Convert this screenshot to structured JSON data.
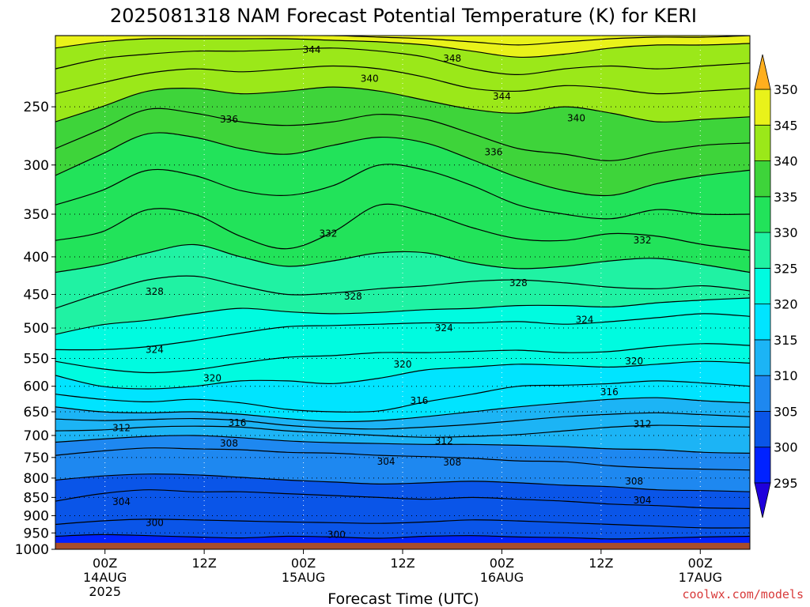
{
  "chart_data": {
    "type": "contour",
    "title": "2025081318 NAM Forecast Potential Temperature (K) for KERI",
    "xlabel": "Forecast Time (UTC)",
    "ylabel": "",
    "x_ticks": [
      {
        "hour": 6,
        "lines": [
          "00Z",
          "14AUG",
          "2025"
        ]
      },
      {
        "hour": 18,
        "lines": [
          "12Z"
        ]
      },
      {
        "hour": 30,
        "lines": [
          "00Z",
          "15AUG"
        ]
      },
      {
        "hour": 42,
        "lines": [
          "12Z"
        ]
      },
      {
        "hour": 54,
        "lines": [
          "00Z",
          "16AUG"
        ]
      },
      {
        "hour": 66,
        "lines": [
          "12Z"
        ]
      },
      {
        "hour": 78,
        "lines": [
          "00Z",
          "17AUG"
        ]
      }
    ],
    "x_range_hours": [
      0,
      84
    ],
    "y_ticks_hpa": [
      250,
      300,
      350,
      400,
      450,
      500,
      550,
      600,
      650,
      700,
      750,
      800,
      850,
      900,
      950,
      1000
    ],
    "y_scale": "log-pressure",
    "y_range_hpa": [
      200,
      1000
    ],
    "surface_pressure_hpa": 980,
    "colorbar": {
      "ticks": [
        295,
        300,
        305,
        310,
        315,
        320,
        325,
        330,
        335,
        340,
        345,
        350
      ],
      "colors": [
        "#1f00dc",
        "#0022ff",
        "#0a55e8",
        "#1e88f0",
        "#1cb4f5",
        "#00e4ff",
        "#00fbe0",
        "#20f2a3",
        "#22e35a",
        "#3ed43a",
        "#9be819",
        "#e9f21a",
        "#ffe400",
        "#ffaf1e"
      ],
      "extend": "both"
    },
    "contour_lines": [
      {
        "value": 300,
        "pressure": [
          960,
          955,
          958,
          962,
          965,
          960,
          962,
          966,
          960,
          958,
          962,
          964,
          968,
          966,
          962,
          960
        ]
      },
      {
        "value": 302,
        "pressure": [
          925,
          915,
          910,
          912,
          915,
          918,
          920,
          922,
          918,
          912,
          915,
          920,
          925,
          930,
          935,
          935
        ]
      },
      {
        "value": 304,
        "pressure": [
          860,
          840,
          830,
          835,
          835,
          840,
          845,
          850,
          855,
          850,
          855,
          860,
          868,
          872,
          878,
          880
        ]
      },
      {
        "value": 306,
        "pressure": [
          805,
          795,
          790,
          792,
          798,
          805,
          810,
          815,
          812,
          808,
          812,
          818,
          822,
          830,
          832,
          835
        ]
      },
      {
        "value": 308,
        "pressure": [
          745,
          735,
          728,
          730,
          732,
          738,
          740,
          745,
          748,
          752,
          758,
          760,
          770,
          775,
          778,
          780
        ]
      },
      {
        "value": 310,
        "pressure": [
          715,
          708,
          702,
          700,
          705,
          712,
          716,
          718,
          720,
          720,
          722,
          725,
          730,
          732,
          738,
          740
        ]
      },
      {
        "value": 312,
        "pressure": [
          690,
          688,
          682,
          680,
          682,
          690,
          695,
          700,
          704,
          702,
          698,
          690,
          682,
          678,
          680,
          682
        ]
      },
      {
        "value": 314,
        "pressure": [
          665,
          668,
          666,
          664,
          668,
          678,
          684,
          686,
          682,
          676,
          668,
          660,
          655,
          652,
          656,
          660
        ]
      },
      {
        "value": 316,
        "pressure": [
          640,
          650,
          652,
          650,
          655,
          664,
          670,
          668,
          660,
          650,
          640,
          632,
          625,
          622,
          628,
          632
        ]
      },
      {
        "value": 318,
        "pressure": [
          615,
          625,
          630,
          625,
          632,
          645,
          650,
          648,
          630,
          615,
          600,
          598,
          595,
          590,
          594,
          600
        ]
      },
      {
        "value": 320,
        "pressure": [
          580,
          600,
          605,
          600,
          590,
          590,
          595,
          585,
          570,
          565,
          560,
          562,
          565,
          560,
          555,
          558
        ]
      },
      {
        "value": 322,
        "pressure": [
          555,
          568,
          575,
          570,
          558,
          548,
          545,
          540,
          540,
          538,
          536,
          540,
          538,
          530,
          525,
          528
        ]
      },
      {
        "value": 324,
        "pressure": [
          535,
          535,
          530,
          520,
          508,
          498,
          496,
          494,
          492,
          492,
          490,
          494,
          490,
          484,
          478,
          482
        ]
      },
      {
        "value": 326,
        "pressure": [
          510,
          495,
          488,
          478,
          470,
          475,
          478,
          476,
          472,
          470,
          466,
          466,
          468,
          462,
          458,
          455
        ]
      },
      {
        "value": 328,
        "pressure": [
          470,
          448,
          430,
          425,
          438,
          450,
          448,
          442,
          438,
          432,
          430,
          434,
          440,
          442,
          438,
          445
        ]
      },
      {
        "value": 330,
        "pressure": [
          420,
          410,
          395,
          385,
          400,
          412,
          405,
          395,
          395,
          408,
          415,
          412,
          405,
          402,
          410,
          420
        ]
      },
      {
        "value": 332,
        "pressure": [
          380,
          370,
          345,
          350,
          375,
          390,
          370,
          340,
          348,
          365,
          378,
          380,
          372,
          375,
          385,
          392
        ]
      },
      {
        "value": 334,
        "pressure": [
          340,
          325,
          305,
          310,
          325,
          330,
          320,
          300,
          305,
          320,
          340,
          350,
          355,
          345,
          350,
          350
        ]
      },
      {
        "value": 336,
        "pressure": [
          310,
          290,
          272,
          275,
          285,
          290,
          282,
          275,
          280,
          295,
          312,
          325,
          330,
          318,
          310,
          305
        ]
      },
      {
        "value": 338,
        "pressure": [
          285,
          268,
          252,
          255,
          262,
          265,
          262,
          256,
          260,
          272,
          285,
          290,
          296,
          288,
          282,
          280
        ]
      },
      {
        "value": 340,
        "pressure": [
          262,
          250,
          238,
          236,
          240,
          238,
          235,
          238,
          245,
          252,
          255,
          250,
          255,
          262,
          260,
          258
        ]
      },
      {
        "value": 342,
        "pressure": [
          240,
          232,
          225,
          222,
          224,
          222,
          220,
          222,
          228,
          236,
          238,
          234,
          236,
          240,
          238,
          236
        ]
      },
      {
        "value": 344,
        "pressure": [
          222,
          215,
          212,
          210,
          210,
          209,
          208,
          210,
          214,
          222,
          226,
          222,
          220,
          222,
          220,
          218
        ]
      },
      {
        "value": 346,
        "pressure": [
          208,
          204,
          202,
          202,
          202,
          202,
          203,
          204,
          206,
          210,
          214,
          212,
          208,
          206,
          206,
          205
        ]
      },
      {
        "value": 348,
        "pressure": [
          200,
          200,
          200,
          200,
          200,
          200,
          200,
          201,
          202,
          204,
          206,
          204,
          202,
          201,
          201,
          200
        ]
      }
    ],
    "contour_labels": [
      {
        "text": "344",
        "hour": 31,
        "pressure": 209
      },
      {
        "text": "348",
        "hour": 48,
        "pressure": 215
      },
      {
        "text": "340",
        "hour": 38,
        "pressure": 229
      },
      {
        "text": "344",
        "hour": 54,
        "pressure": 242
      },
      {
        "text": "340",
        "hour": 63,
        "pressure": 259
      },
      {
        "text": "336",
        "hour": 21,
        "pressure": 260
      },
      {
        "text": "336",
        "hour": 53,
        "pressure": 288
      },
      {
        "text": "332",
        "hour": 33,
        "pressure": 372
      },
      {
        "text": "332",
        "hour": 71,
        "pressure": 380
      },
      {
        "text": "328",
        "hour": 56,
        "pressure": 434
      },
      {
        "text": "328",
        "hour": 12,
        "pressure": 446
      },
      {
        "text": "328",
        "hour": 36,
        "pressure": 453
      },
      {
        "text": "324",
        "hour": 64,
        "pressure": 487
      },
      {
        "text": "324",
        "hour": 47,
        "pressure": 500
      },
      {
        "text": "324",
        "hour": 12,
        "pressure": 535
      },
      {
        "text": "320",
        "hour": 42,
        "pressure": 560
      },
      {
        "text": "320",
        "hour": 70,
        "pressure": 555
      },
      {
        "text": "320",
        "hour": 19,
        "pressure": 585
      },
      {
        "text": "316",
        "hour": 67,
        "pressure": 611
      },
      {
        "text": "316",
        "hour": 44,
        "pressure": 628
      },
      {
        "text": "316",
        "hour": 22,
        "pressure": 673
      },
      {
        "text": "312",
        "hour": 71,
        "pressure": 675
      },
      {
        "text": "312",
        "hour": 8,
        "pressure": 684
      },
      {
        "text": "312",
        "hour": 47,
        "pressure": 712
      },
      {
        "text": "308",
        "hour": 21,
        "pressure": 718
      },
      {
        "text": "304",
        "hour": 40,
        "pressure": 760
      },
      {
        "text": "308",
        "hour": 48,
        "pressure": 762
      },
      {
        "text": "308",
        "hour": 70,
        "pressure": 808
      },
      {
        "text": "304",
        "hour": 8,
        "pressure": 862
      },
      {
        "text": "304",
        "hour": 71,
        "pressure": 858
      },
      {
        "text": "300",
        "hour": 12,
        "pressure": 920
      },
      {
        "text": "300",
        "hour": 34,
        "pressure": 955
      },
      {
        "text": "300",
        "hour": 57,
        "pressure": 993
      }
    ]
  },
  "credit": "coolwx.com/models",
  "colors": {
    "ground": "#a84d2a",
    "contour_line": "#000000",
    "grid": "#000000"
  }
}
